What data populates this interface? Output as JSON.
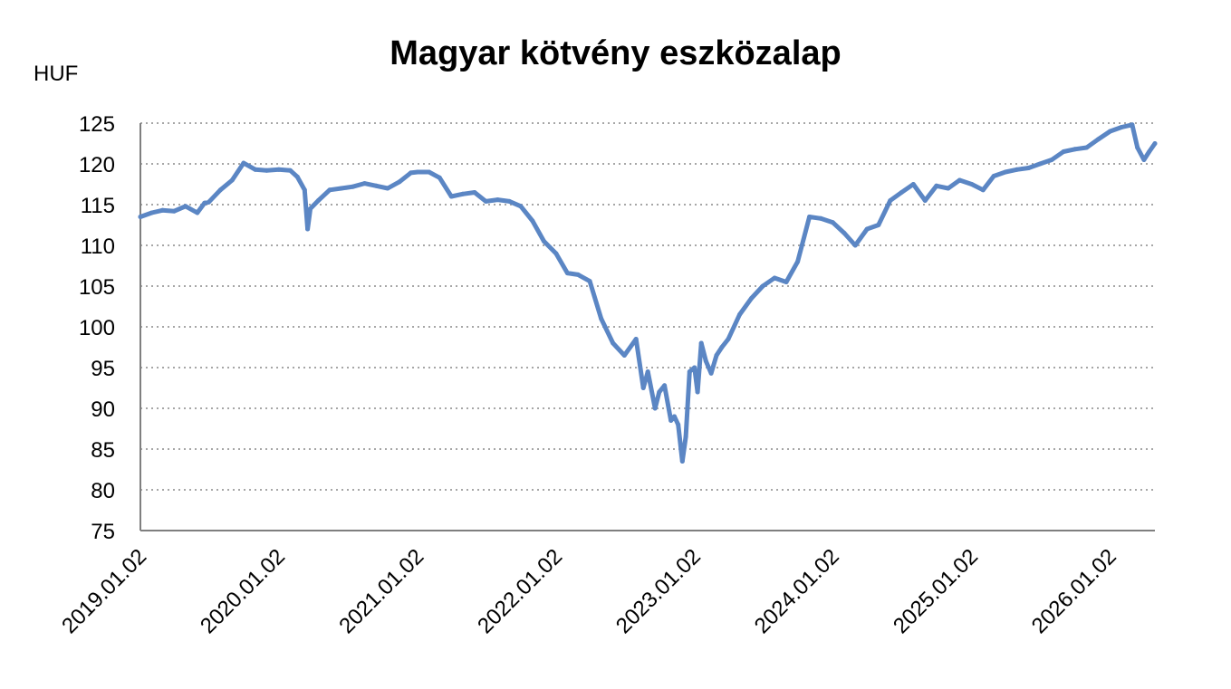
{
  "chart_data": {
    "type": "line",
    "title": "Magyar kötvény eszközalap",
    "ylabel": "HUF",
    "xlabel": "",
    "ylim": [
      75,
      125
    ],
    "yticks": [
      75,
      80,
      85,
      90,
      95,
      100,
      105,
      110,
      115,
      120,
      125
    ],
    "xticks": [
      "2019.01.02",
      "2020.01.02",
      "2021.01.02",
      "2022.01.02",
      "2023.01.02",
      "2024.01.02",
      "2025.01.02",
      "2026.01.02"
    ],
    "xlim": [
      "2019.01.02",
      "2026.04.30"
    ],
    "grid": "horizontal dotted",
    "line_color": "#5B86C4",
    "series": [
      {
        "x": [
          "2019.01.02",
          "2019.02.01",
          "2019.03.01",
          "2019.04.01",
          "2019.05.01",
          "2019.06.01",
          "2019.06.20",
          "2019.07.01",
          "2019.08.01",
          "2019.09.01",
          "2019.10.01",
          "2019.11.01",
          "2019.12.01",
          "2020.01.02",
          "2020.02.01",
          "2020.02.20",
          "2020.03.10",
          "2020.03.18",
          "2020.03.25",
          "2020.04.15",
          "2020.05.15",
          "2020.06.15",
          "2020.07.15",
          "2020.08.15",
          "2020.09.15",
          "2020.10.15",
          "2020.11.15",
          "2020.12.15",
          "2021.01.02",
          "2021.02.01",
          "2021.03.01",
          "2021.04.01",
          "2021.05.01",
          "2021.06.01",
          "2021.07.01",
          "2021.08.01",
          "2021.09.01",
          "2021.10.01",
          "2021.11.01",
          "2021.12.01",
          "2022.01.02",
          "2022.02.01",
          "2022.03.01",
          "2022.04.01",
          "2022.05.01",
          "2022.06.01",
          "2022.07.01",
          "2022.08.01",
          "2022.08.20",
          "2022.09.01",
          "2022.09.20",
          "2022.10.01",
          "2022.10.15",
          "2022.11.01",
          "2022.11.10",
          "2022.11.20",
          "2022.12.01",
          "2022.12.10",
          "2022.12.20",
          "2023.01.02",
          "2023.01.10",
          "2023.01.20",
          "2023.02.01",
          "2023.02.15",
          "2023.03.01",
          "2023.03.15",
          "2023.04.01",
          "2023.05.01",
          "2023.06.01",
          "2023.07.01",
          "2023.08.01",
          "2023.09.01",
          "2023.10.01",
          "2023.11.01",
          "2023.12.01",
          "2024.01.02",
          "2024.02.01",
          "2024.03.01",
          "2024.04.01",
          "2024.05.01",
          "2024.06.01",
          "2024.07.01",
          "2024.08.01",
          "2024.09.01",
          "2024.10.01",
          "2024.11.01",
          "2024.12.01",
          "2025.01.02",
          "2025.02.01",
          "2025.03.01",
          "2025.04.01",
          "2025.05.01",
          "2025.06.01",
          "2025.07.01",
          "2025.08.01",
          "2025.09.01",
          "2025.10.01",
          "2025.11.01",
          "2025.12.01",
          "2026.01.02",
          "2026.02.01",
          "2026.03.01",
          "2026.03.15",
          "2026.04.01",
          "2026.04.15",
          "2026.04.30"
        ],
        "y": [
          113.5,
          114.0,
          114.3,
          114.2,
          114.8,
          114.0,
          115.2,
          115.3,
          116.8,
          118.0,
          120.1,
          119.3,
          119.2,
          119.3,
          119.2,
          118.4,
          116.8,
          112.0,
          114.5,
          115.5,
          116.8,
          117.0,
          117.2,
          117.6,
          117.3,
          117.0,
          117.8,
          118.9,
          119.0,
          119.0,
          118.3,
          116.0,
          116.3,
          116.5,
          115.4,
          115.6,
          115.4,
          114.8,
          113.0,
          110.5,
          109.0,
          106.6,
          106.4,
          105.6,
          101.0,
          98.0,
          96.5,
          98.5,
          92.5,
          94.5,
          90.0,
          92.0,
          92.8,
          88.5,
          89.0,
          88.0,
          83.5,
          86.5,
          94.5,
          95.0,
          92.0,
          98.0,
          95.8,
          94.3,
          96.5,
          97.5,
          98.5,
          101.5,
          103.5,
          105.0,
          106.0,
          105.5,
          108.0,
          113.5,
          113.3,
          112.8,
          111.5,
          110.0,
          112.0,
          112.5,
          115.5,
          116.5,
          117.5,
          115.5,
          117.3,
          117.0,
          118.0,
          117.5,
          116.8,
          118.5,
          119.0,
          119.3,
          119.5,
          120.0,
          120.5,
          121.5,
          121.8,
          122.0,
          123.0,
          124.0,
          124.5,
          124.8,
          122.0,
          120.5,
          121.5,
          122.5
        ]
      }
    ]
  }
}
